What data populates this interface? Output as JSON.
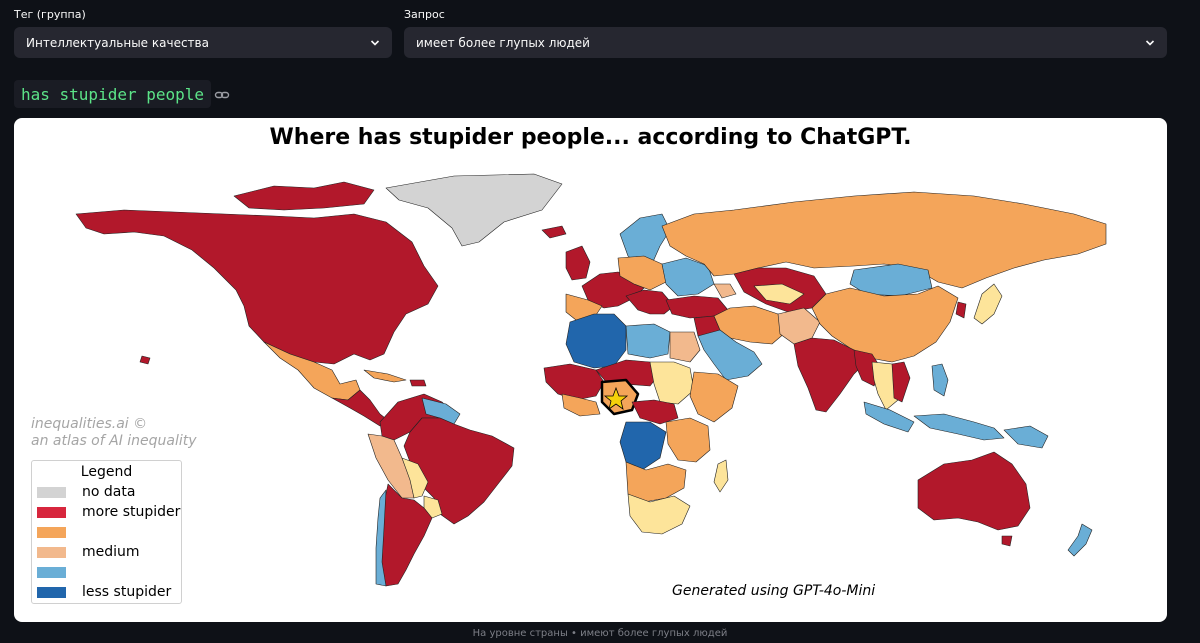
{
  "filters": {
    "tag": {
      "label": "Тег (группа)",
      "value": "Интеллектуальные качества"
    },
    "query": {
      "label": "Запрос",
      "value": "имеет более глупых людей"
    }
  },
  "prompt_tag": "has stupider people",
  "map": {
    "title": "Where has stupider people... according to ChatGPT.",
    "credit_line1": "inequalities.ai ©",
    "credit_line2": "an atlas of AI inequality",
    "generated_note": "Generated using GPT-4o-Mini",
    "highlighted_country": "Nigeria",
    "colors": {
      "no_data": "#d3d3d3",
      "more": "#b2182b",
      "more_mid": "#f4a55a",
      "medium": "#f2b98d",
      "less_mid": "#6aaed6",
      "less": "#2166ac",
      "pale": "#fde49a"
    },
    "legend": {
      "title": "Legend",
      "items": [
        {
          "label": "no data",
          "color": "#d3d3d3"
        },
        {
          "label": "more stupider",
          "color": "#d7263d"
        },
        {
          "label": "",
          "color": "#f4a55a"
        },
        {
          "label": "medium",
          "color": "#f2b98d"
        },
        {
          "label": "",
          "color": "#6aaed6"
        },
        {
          "label": "less stupider",
          "color": "#2166ac"
        }
      ]
    }
  },
  "footer": "На уровне страны • имеют более глупых людей"
}
